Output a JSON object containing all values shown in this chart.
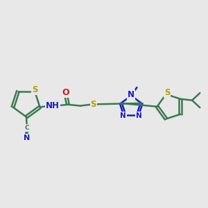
{
  "background_color": "#e8e8e8",
  "bond_color": "#3a7a50",
  "bond_width": 1.8,
  "atom_colors": {
    "S": "#b8a000",
    "N": "#1a1acc",
    "O": "#cc1a1a",
    "C": "#3a7a50",
    "H": "#1a1acc"
  },
  "font_size": 8.5,
  "figsize": [
    3.0,
    3.0
  ],
  "dpi": 100
}
